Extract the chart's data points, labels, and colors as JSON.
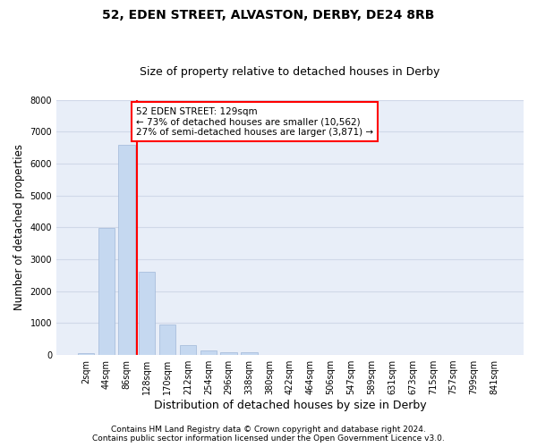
{
  "title": "52, EDEN STREET, ALVASTON, DERBY, DE24 8RB",
  "subtitle": "Size of property relative to detached houses in Derby",
  "xlabel": "Distribution of detached houses by size in Derby",
  "ylabel": "Number of detached properties",
  "categories": [
    "2sqm",
    "44sqm",
    "86sqm",
    "128sqm",
    "170sqm",
    "212sqm",
    "254sqm",
    "296sqm",
    "338sqm",
    "380sqm",
    "422sqm",
    "464sqm",
    "506sqm",
    "547sqm",
    "589sqm",
    "631sqm",
    "673sqm",
    "715sqm",
    "757sqm",
    "799sqm",
    "841sqm"
  ],
  "values": [
    70,
    3980,
    6600,
    2620,
    960,
    310,
    135,
    100,
    75,
    0,
    0,
    0,
    0,
    0,
    0,
    0,
    0,
    0,
    0,
    0,
    0
  ],
  "bar_color": "#c5d8f0",
  "bar_edgecolor": "#a0b8d8",
  "property_line_label": "52 EDEN STREET: 129sqm",
  "annotation_line1": "← 73% of detached houses are smaller (10,562)",
  "annotation_line2": "27% of semi-detached houses are larger (3,871) →",
  "annotation_box_color": "white",
  "annotation_box_edgecolor": "red",
  "vline_color": "red",
  "ylim": [
    0,
    8000
  ],
  "yticks": [
    0,
    1000,
    2000,
    3000,
    4000,
    5000,
    6000,
    7000,
    8000
  ],
  "grid_color": "#d0d8e8",
  "bg_color": "#e8eef8",
  "footer_line1": "Contains HM Land Registry data © Crown copyright and database right 2024.",
  "footer_line2": "Contains public sector information licensed under the Open Government Licence v3.0.",
  "title_fontsize": 10,
  "subtitle_fontsize": 9,
  "axis_label_fontsize": 8.5,
  "tick_fontsize": 7,
  "annotation_fontsize": 7.5,
  "footer_fontsize": 6.5
}
